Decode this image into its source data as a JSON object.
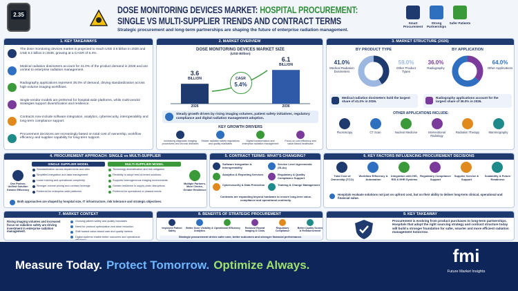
{
  "header": {
    "title_part1": "DOSE MONITORING DEVICES MARKET:",
    "title_part2": "HOSPITAL PROCUREMENT:",
    "title_line2": "SINGLE VS MULTI-SUPPLIER TRENDS AND CONTRACT TERMS",
    "subtitle": "Strategic procurement and long-term partnerships are shaping the future of enterprise radiation management.",
    "device_reading": "2.35",
    "icons": [
      "Smart Procurement",
      "Strong Partnerships",
      "Safer Patients"
    ]
  },
  "key_takeaways": {
    "title": "1. KEY TAKEAWAYS",
    "items": [
      "The dose monitoring devices market is projected to reach USD 3.6 billion in 2026 and USD 6.1 billion in 2036, growing at a CAGR of 5.4%.",
      "Medical radiation dosimeters account for 41.0% of the product demand in 2026 and are central to enterprise radiation management.",
      "Radiography applications represent 36.0% of demand, driving standardization across high-volume imaging workflows.",
      "Single-vendor models are preferred for hospital-wide platforms, while multi-vendor strategies support diversification and resilience.",
      "Contracts now include software integration, analytics, cybersecurity, interoperability and long-term compliance support.",
      "Procurement decisions are increasingly based on total cost of ownership, workflow efficiency and supplier capability for long-term support."
    ]
  },
  "market_overview": {
    "title": "2. MARKET OVERVIEW",
    "chart": {
      "title": "DOSE MONITORING DEVICES MARKET SIZE",
      "unit": "(USD Billion)",
      "categories": [
        "2026",
        "2036"
      ],
      "values": [
        3.6,
        6.1
      ],
      "value_unit": "BILLION",
      "cagr_label": "CAGR",
      "cagr": "5.4%"
    },
    "summary": "Steady growth driven by rising imaging volumes, patient safety initiatives, regulatory compliance and digital radiation management adoption.",
    "drivers_title": "KEY GROWTH DRIVERS",
    "drivers": [
      "Increasing diagnostic imaging procedures and chronic diseases",
      "Stricter radiation safety regulations and quality mandates",
      "Digital transformation and enterprise radiation management",
      "Focus on cost efficiency and value-based healthcare"
    ]
  },
  "market_structure": {
    "title": "3. MARKET STRUCTURE (2026)",
    "by_product": {
      "title": "BY PRODUCT TYPE",
      "slices": [
        {
          "label": "Medical Radiation Dosimeters",
          "value": 41.0,
          "value_label": "41.0%"
        },
        {
          "label": "Other Product Types",
          "value": 59.0,
          "value_label": "59.0%"
        }
      ],
      "note": "Medical radiation dosimeters hold the largest share of 41.0% in 2026."
    },
    "by_application": {
      "title": "BY APPLICATION",
      "slices": [
        {
          "label": "Radiography",
          "value": 36.0,
          "value_label": "36.0%"
        },
        {
          "label": "Other Applications",
          "value": 64.0,
          "value_label": "64.0%"
        }
      ],
      "note": "Radiography applications account for the largest share of 36.0% in 2026."
    },
    "others_title": "OTHER APPLICATIONS INCLUDE:",
    "others": [
      "Fluoroscopy",
      "CT Scan",
      "Nuclear Medicine",
      "Interventional Radiology",
      "Radiation Therapy",
      "Mammography"
    ]
  },
  "procurement": {
    "title": "4. PROCUREMENT APPROACH: SINGLE vs MULTI-SUPPLIER",
    "single": {
      "title": "SINGLE SUPPLIER MODEL",
      "caption": "One Partner, Unified Solution Greater Efficiency",
      "items": [
        "Standardization across departments and sites",
        "Simplified integration and data management",
        "Lower training and operational complexity",
        "Stronger volume pricing and contract leverage",
        "Preferred for enterprise-wide platforms"
      ]
    },
    "multi": {
      "title": "MULTI-SUPPLIER MODEL",
      "caption": "Multiple Partners, More Choice, Greater Resilience",
      "items": [
        "Technology diversification and risk mitigation",
        "Flexibility to adopt best-of-breed solutions",
        "Supports heterogeneous imaging environments",
        "Greater resilience to supply chain disruptions",
        "Preferred for specialized or phased needs"
      ]
    },
    "note": "Both approaches are shaped by hospital size, IT infrastructure, risk tolerance and strategic objectives."
  },
  "contract_terms": {
    "title": "5. CONTRACT TERMS: WHAT'S CHANGING?",
    "items": [
      "Software Integration & Interoperability",
      "Service Level Agreements (SLAs)",
      "Analytics & Reporting Services",
      "Regulatory & Quality Compliance Support",
      "Cybersecurity & Data Protection",
      "Training & Change Management"
    ],
    "note": "Contracts are expanding beyond hardware to ensure long-term value, compliance and operational continuity."
  },
  "key_factors": {
    "title": "6. KEY FACTORS INFLUENCING PROCUREMENT DECISIONS",
    "items": [
      "Total Cost of Ownership (TCO)",
      "Workflow Efficiency & Automation",
      "Integration with HIS, RIS & EHR Systems",
      "Regulatory Compliance Support",
      "Supplier Service & Support",
      "Scalability & Future Readiness"
    ],
    "note": "Hospitals evaluate solutions not just on upfront cost, but on their ability to deliver long-term clinical, operational and financial value."
  },
  "market_context": {
    "title": "7. MARKET CONTEXT",
    "caption": "Rising imaging volumes and increased focus on radiation safety are driving investment in enterprise radiation management.",
    "items": [
      "Growing patient safety and quality mandates",
      "Need for protocol optimization and dose reduction",
      "Shift toward value-based care and quality metrics",
      "Digital systems enable better outcomes and operational efficiency"
    ]
  },
  "benefits": {
    "title": "8. BENEFITS OF STRATEGIC PROCUREMENT",
    "items": [
      "Improved Patient Safety",
      "Better Dose Visibility & Analytics",
      "Operational Efficiency",
      "Reduced Repeat Imaging & Costs",
      "Regulatory Compliance",
      "Better Quality Scores & Reimbursement"
    ],
    "note": "Strategic procurement drives safer care, better outcomes and stronger financial performance."
  },
  "key_takeaway": {
    "title": "9. KEY TAKEAWAY",
    "text": "Procurement is evolving from product purchases to long-term partnerships. Hospitals that adopt the right sourcing strategy and contract structure today will build a stronger foundation for safer, smarter and more efficient radiation management tomorrow."
  },
  "footer": {
    "tagline": [
      "Measure Today.",
      "Protect Tomorrow.",
      "Optimize Always."
    ],
    "brand": "fmi",
    "brand_name": "Future Market Insights"
  }
}
